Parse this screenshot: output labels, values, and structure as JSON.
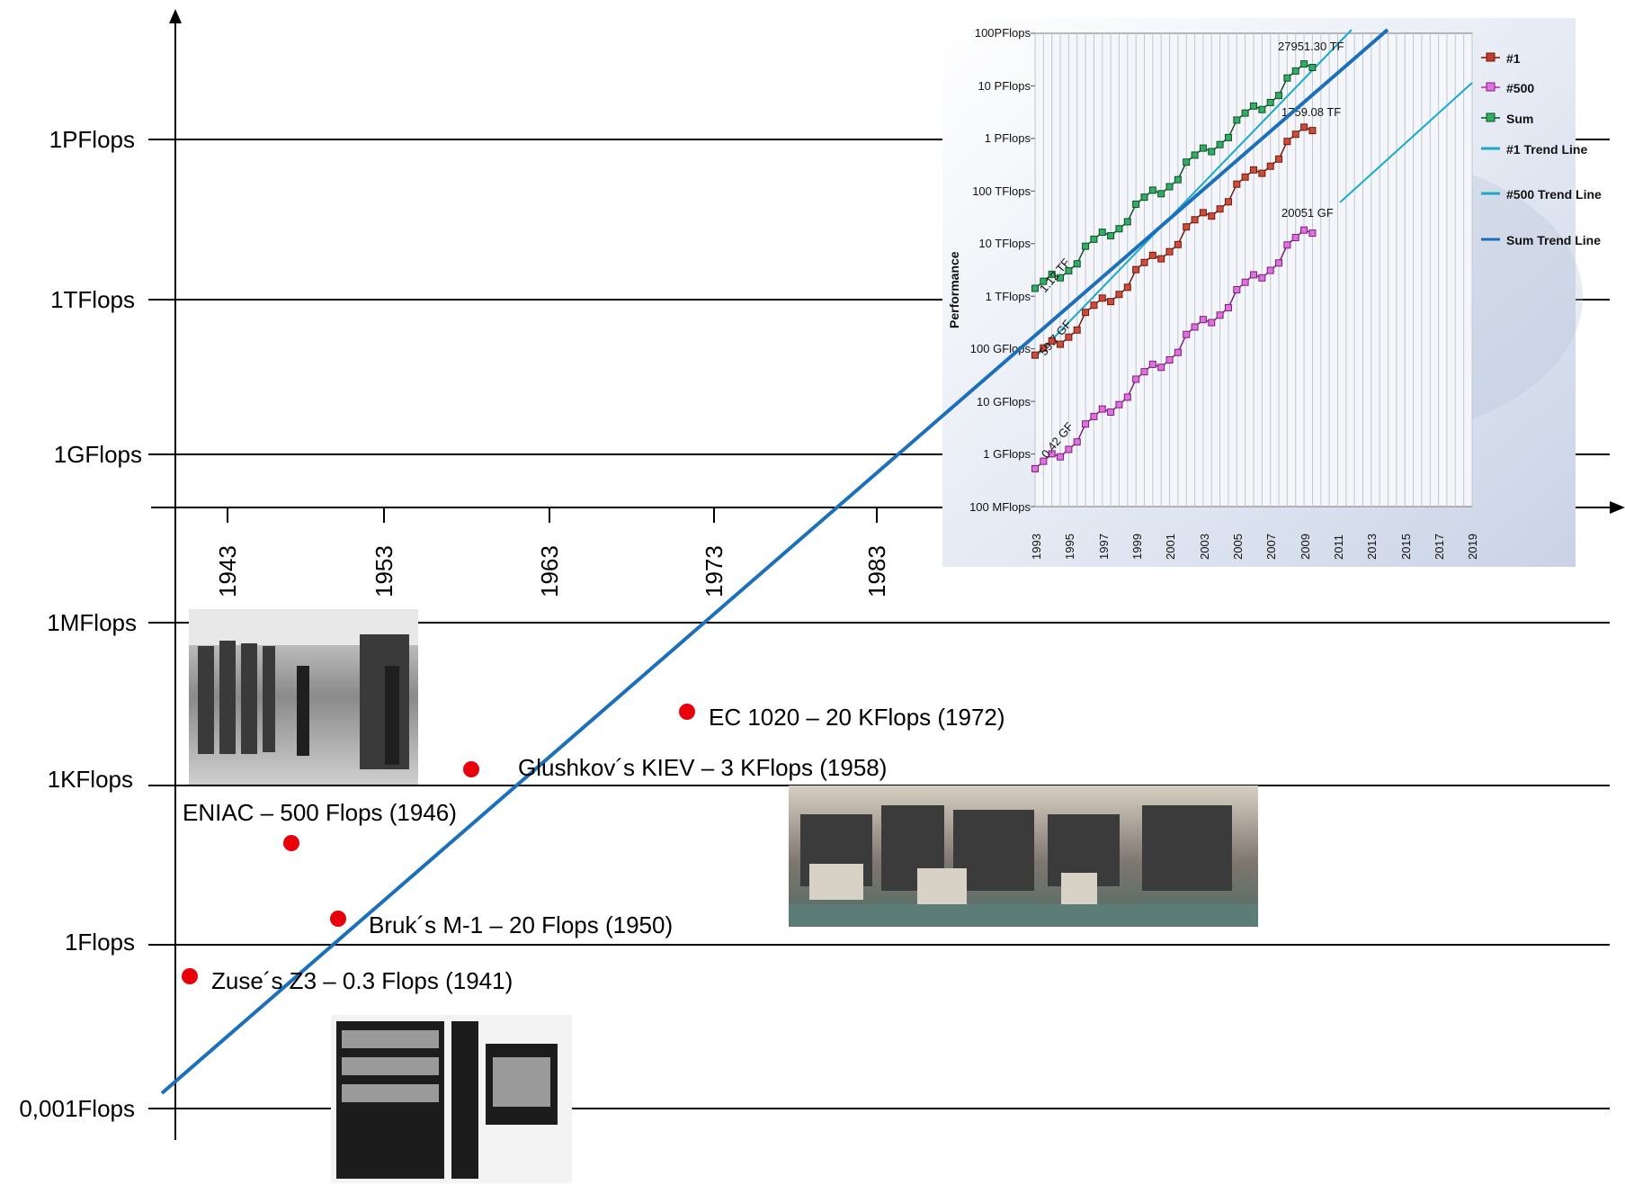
{
  "chart_data": [
    {
      "type": "scatter",
      "xlabel": "",
      "ylabel": "",
      "y_scale": "log",
      "y_ticks": [
        "1PFlops",
        "1TFlops",
        "1GFlops",
        "1MFlops",
        "1KFlops",
        "1Flops",
        "0,001Flops"
      ],
      "x_ticks": [
        "1943",
        "1953",
        "1963",
        "1973",
        "1983"
      ],
      "points": [
        {
          "label": "Zuse´s Z3 – 0.3 Flops (1941)",
          "year": 1941,
          "flops": 0.3
        },
        {
          "label": "ENIAC – 500 Flops (1946)",
          "year": 1946,
          "flops": 500
        },
        {
          "label": "Bruk´s M-1 – 20 Flops (1950)",
          "year": 1950,
          "flops": 20
        },
        {
          "label": "Glushkov´s KIEV – 3 KFlops (1958)",
          "year": 1958,
          "flops": 3000
        },
        {
          "label": "EC 1020 – 20 KFlops (1972)",
          "year": 1972,
          "flops": 20000
        }
      ],
      "trend_line": {
        "from": {
          "year": 1939,
          "flops": 0.001
        },
        "to": {
          "year": 1997,
          "flops": 1000000000000.0
        }
      },
      "colors": {
        "points": "#e8000b",
        "trend": "#1c6fbb",
        "grid": "#000000"
      }
    },
    {
      "type": "line",
      "ylabel": "Performance",
      "y_scale": "log",
      "y_ticks": [
        "100 MFlops",
        "1 GFlops",
        "10 GFlops",
        "100 GFlops",
        "1 TFlops",
        "10 TFlops",
        "100 TFlops",
        "1 PFlops",
        "10 PFlops",
        "100PFlops"
      ],
      "x_ticks": [
        "1993",
        "1995",
        "1997",
        "1999",
        "2001",
        "2003",
        "2005",
        "2007",
        "2009",
        "2011",
        "2013",
        "2015",
        "2017",
        "2019"
      ],
      "legend": [
        "#1",
        "#500",
        "Sum",
        "#1 Trend Line",
        "#500 Trend Line",
        "Sum Trend Line"
      ],
      "annotations": [
        "27951.30 TF",
        "1759.08 TF",
        "20051 GF",
        "1.12 TF",
        "59.7 GF",
        "0.42 GF"
      ],
      "series_colors": {
        "#1": "#c0392b",
        "#500": "#d14fd1",
        "Sum": "#1e8a4a",
        "#1 Trend Line": "#19a9c9",
        "#500 Trend Line": "#19a9c9",
        "Sum Trend Line": "#1c6fbb"
      }
    }
  ]
}
